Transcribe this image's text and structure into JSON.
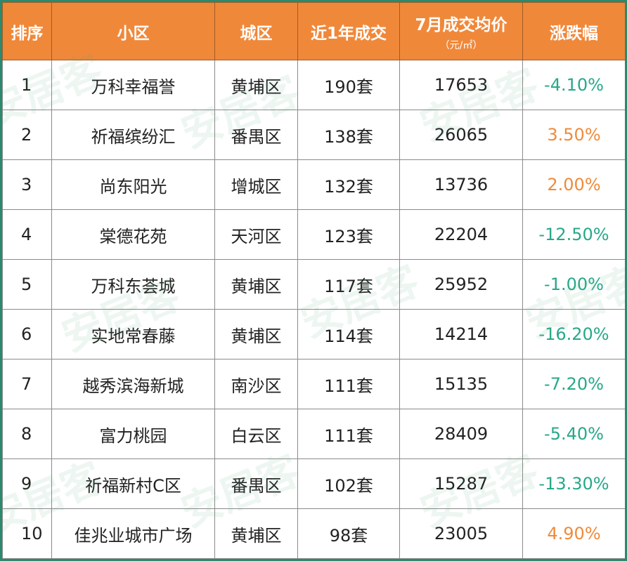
{
  "colors": {
    "header_bg": "#f0883a",
    "header_text": "#ffffff",
    "negative": "#27a889",
    "positive": "#ef8b3b",
    "frame": "#2b8a6e"
  },
  "watermark": "安居客",
  "chart_data": {
    "type": "table",
    "columns": [
      "排序",
      "小区",
      "城区",
      "近1年成交",
      "7月成交均价",
      "涨跌幅"
    ],
    "column_subtitles": {
      "7月成交均价": "（元/㎡）"
    },
    "rows": [
      {
        "rank": "1",
        "name": "万科幸福誉",
        "district": "黄埔区",
        "deals": "190套",
        "price": "17653",
        "change": "-4.10%",
        "trend": "neg"
      },
      {
        "rank": "2",
        "name": "祈福缤纷汇",
        "district": "番禺区",
        "deals": "138套",
        "price": "26065",
        "change": "3.50%",
        "trend": "pos"
      },
      {
        "rank": "3",
        "name": "尚东阳光",
        "district": "增城区",
        "deals": "132套",
        "price": "13736",
        "change": "2.00%",
        "trend": "pos"
      },
      {
        "rank": "4",
        "name": "棠德花苑",
        "district": "天河区",
        "deals": "123套",
        "price": "22204",
        "change": "-12.50%",
        "trend": "neg"
      },
      {
        "rank": "5",
        "name": "万科东荟城",
        "district": "黄埔区",
        "deals": "117套",
        "price": "25952",
        "change": "-1.00%",
        "trend": "neg"
      },
      {
        "rank": "6",
        "name": "实地常春藤",
        "district": "黄埔区",
        "deals": "114套",
        "price": "14214",
        "change": "-16.20%",
        "trend": "neg"
      },
      {
        "rank": "7",
        "name": "越秀滨海新城",
        "district": "南沙区",
        "deals": "111套",
        "price": "15135",
        "change": "-7.20%",
        "trend": "neg"
      },
      {
        "rank": "8",
        "name": "富力桃园",
        "district": "白云区",
        "deals": "111套",
        "price": "28409",
        "change": "-5.40%",
        "trend": "neg"
      },
      {
        "rank": "9",
        "name": "祈福新村C区",
        "district": "番禺区",
        "deals": "102套",
        "price": "15287",
        "change": "-13.30%",
        "trend": "neg"
      },
      {
        "rank": "10",
        "name": "佳兆业城市广场",
        "district": "黄埔区",
        "deals": "98套",
        "price": "23005",
        "change": "4.90%",
        "trend": "pos"
      }
    ]
  }
}
